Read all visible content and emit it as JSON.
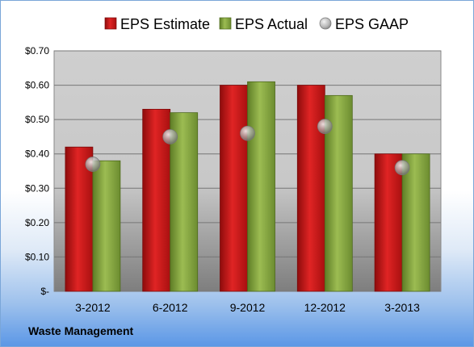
{
  "company": "Waste Management",
  "legend": [
    {
      "key": "estimate",
      "label": "EPS Estimate"
    },
    {
      "key": "actual",
      "label": "EPS Actual"
    },
    {
      "key": "gaap",
      "label": "EPS GAAP"
    }
  ],
  "colors": {
    "estimate": "#d01818",
    "actual": "#86a83e",
    "gaap": "#a0a0a0",
    "grid": "#777777"
  },
  "chart_data": {
    "type": "bar",
    "categories": [
      "3-2012",
      "6-2012",
      "9-2012",
      "12-2012",
      "3-2013"
    ],
    "series": [
      {
        "name": "EPS Estimate",
        "key": "estimate",
        "values": [
          0.42,
          0.53,
          0.6,
          0.6,
          0.4
        ]
      },
      {
        "name": "EPS Actual",
        "key": "actual",
        "values": [
          0.38,
          0.52,
          0.61,
          0.57,
          0.4
        ]
      },
      {
        "name": "EPS GAAP",
        "key": "gaap",
        "type": "scatter",
        "values": [
          0.37,
          0.45,
          0.46,
          0.48,
          0.36
        ]
      }
    ],
    "ylim": [
      0,
      0.7
    ],
    "yticks": [
      0,
      0.1,
      0.2,
      0.3,
      0.4,
      0.5,
      0.6,
      0.7
    ],
    "ytick_labels": [
      "$-",
      "$0.10",
      "$0.20",
      "$0.30",
      "$0.40",
      "$0.50",
      "$0.60",
      "$0.70"
    ],
    "legend_position": "top",
    "grid": true
  }
}
